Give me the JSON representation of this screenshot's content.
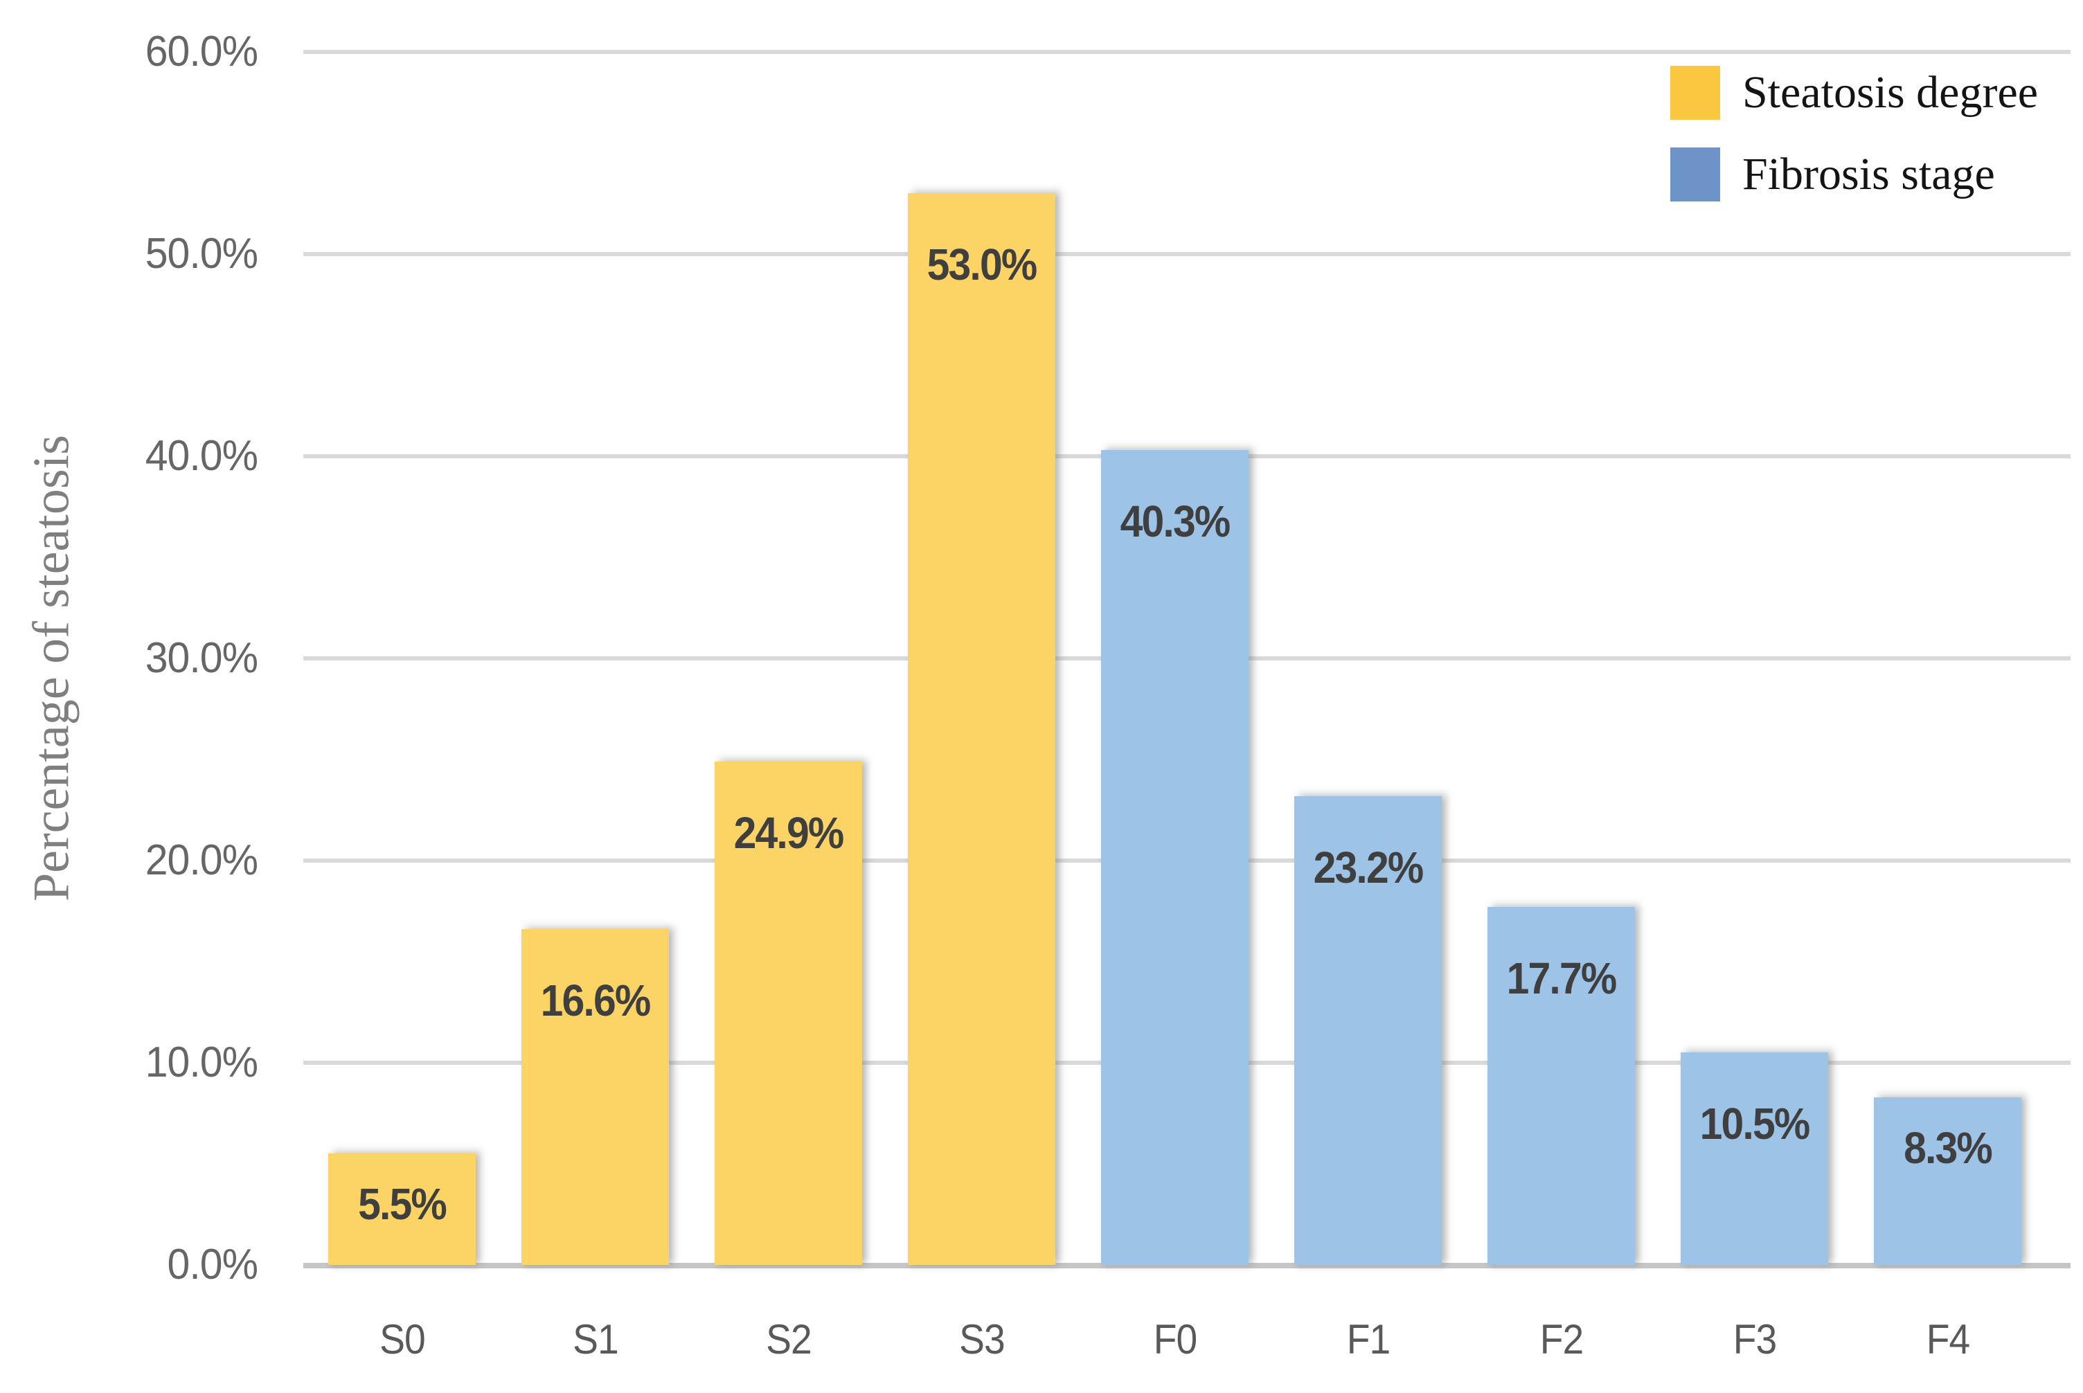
{
  "chart_data": {
    "type": "bar",
    "title": "",
    "ylabel": "Percentage of steatosis",
    "xlabel": "",
    "ylim": [
      0,
      60
    ],
    "ytick_interval": 10,
    "y_tick_labels": [
      "60.0%",
      "50.0%",
      "40.0%",
      "30.0%",
      "20.0%",
      "10.0%",
      "0.0%"
    ],
    "categories": [
      "S0",
      "S1",
      "S2",
      "S3",
      "F0",
      "F1",
      "F2",
      "F3",
      "F4"
    ],
    "series": [
      {
        "name": "Steatosis degree",
        "bar_color": "#FCD466",
        "legend_color": "#FBC640",
        "values": [
          5.5,
          16.6,
          24.9,
          53.0,
          null,
          null,
          null,
          null,
          null
        ]
      },
      {
        "name": "Fibrosis stage",
        "bar_color": "#9DC3E6",
        "legend_color": "#6D93C9",
        "values": [
          null,
          null,
          null,
          null,
          40.3,
          23.2,
          17.7,
          10.5,
          8.3
        ]
      }
    ],
    "data_labels": [
      "5.5%",
      "16.6%",
      "24.9%",
      "53.0%",
      "40.3%",
      "23.2%",
      "17.7%",
      "10.5%",
      "8.3%"
    ],
    "grid": true,
    "legend_position": "top-right",
    "gridline_color": "#D9D9D9",
    "baseline_color": "#C6C6C6",
    "axis_label_color": "#595959",
    "data_label_color": "#3F3F3F",
    "ylabel_color": "#7F7F7F"
  }
}
